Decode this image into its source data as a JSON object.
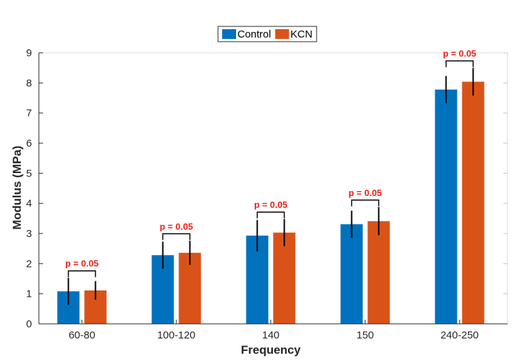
{
  "chart_data": {
    "type": "bar",
    "title": "",
    "xlabel": "Frequency",
    "ylabel": "Modulus (MPa)",
    "ylim": [
      0,
      9
    ],
    "yticks": [
      0,
      1,
      2,
      3,
      4,
      5,
      6,
      7,
      8,
      9
    ],
    "categories": [
      "60-80",
      "100-120",
      "140",
      "150",
      "240-250"
    ],
    "series": [
      {
        "name": "Control",
        "color": "#0072BD",
        "values": [
          1.08,
          2.28,
          2.93,
          3.31,
          7.78
        ],
        "error": [
          0.45,
          0.45,
          0.52,
          0.45,
          0.45
        ]
      },
      {
        "name": "KCN",
        "color": "#D95319",
        "values": [
          1.11,
          2.36,
          3.03,
          3.41,
          8.04
        ],
        "error": [
          0.31,
          0.4,
          0.45,
          0.47,
          0.46
        ]
      }
    ],
    "annotations": [
      "p = 0.05",
      "p = 0.05",
      "p = 0.05",
      "p = 0.05",
      "p = 0.05"
    ],
    "annotation_color": "#E8201C",
    "legend_position": "top-center",
    "grid": false
  }
}
